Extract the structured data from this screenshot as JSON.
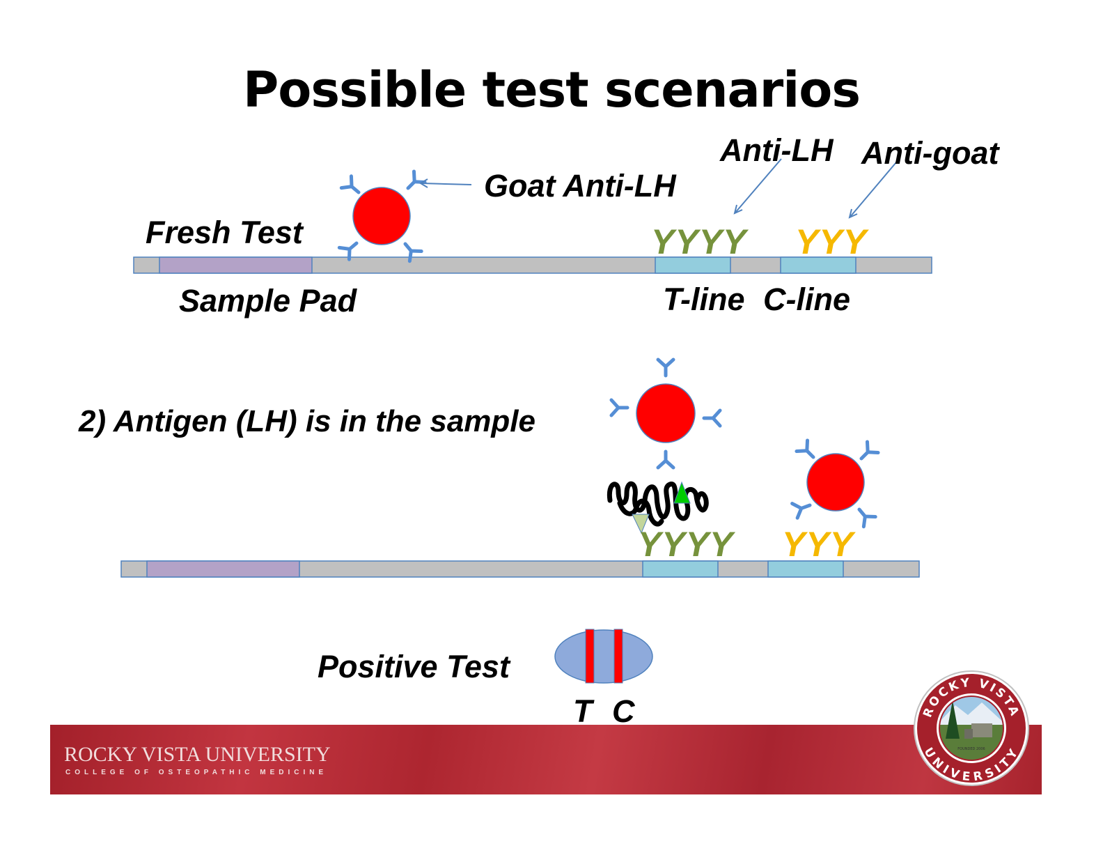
{
  "title": "Possible test scenarios",
  "labels": {
    "anti_lh": "Anti-LH",
    "anti_goat": "Anti-goat",
    "goat_anti_lh": "Goat Anti-LH",
    "fresh_test": "Fresh Test",
    "sample_pad": "Sample Pad",
    "t_line": "T-line",
    "c_line": "C-line",
    "scenario_2": "2) Antigen (LH) is in the sample",
    "positive_test": "Positive Test",
    "t": "T",
    "c": "C"
  },
  "antibody_rows": {
    "t_line_top": "YYYY",
    "c_line_top": "YYY",
    "t_line_bottom": "YYYY",
    "c_line_bottom": "YYY"
  },
  "footer": {
    "brand": "ROCKY VISTA UNIVERSITY",
    "subtitle": "COLLEGE OF OSTEOPATHIC MEDICINE",
    "seal_top": "ROCKY VISTA",
    "seal_bottom": "UNIVERSITY",
    "seal_founded": "FOUNDED 2006"
  },
  "colors": {
    "strip_gray": "#c0c0c0",
    "sample_pad": "#b3a2c7",
    "test_zone": "#93cddd",
    "antibody_blue": "#558ed5",
    "particle_red": "#ff0000",
    "t_antibody": "#76923c",
    "c_antibody": "#f5b800",
    "footer_red": "#b12a34"
  }
}
